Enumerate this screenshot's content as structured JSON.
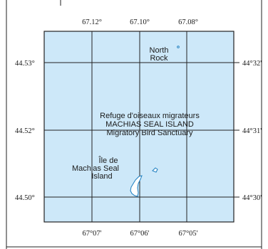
{
  "colors": {
    "water": "#cde8f9",
    "island_fill": "#ffffff",
    "island_outline": "#1a7dc0",
    "grid": "#222222",
    "frame": "#222222"
  },
  "top_longitude_labels": [
    "67.12°",
    "67.10°",
    "67.08°"
  ],
  "bottom_longitude_labels": [
    "67°07'",
    "67°06'",
    "67°05'"
  ],
  "left_latitude_labels": [
    "44.53°",
    "44.52°",
    "44.50°"
  ],
  "right_latitude_labels": [
    "44°32'",
    "44°31'",
    "44°30'"
  ],
  "features": {
    "north_rock": {
      "line1": "North",
      "line2": "Rock"
    },
    "island_label": {
      "line1": "Île de",
      "line2": "Machias Seal",
      "line3": "Island"
    }
  },
  "sanctuary_label": {
    "line1": "Refuge d'oiseaux migrateurs",
    "line2": "MACHIAS SEAL ISLAND",
    "line3": "Migratory Bird Sanctuary"
  }
}
